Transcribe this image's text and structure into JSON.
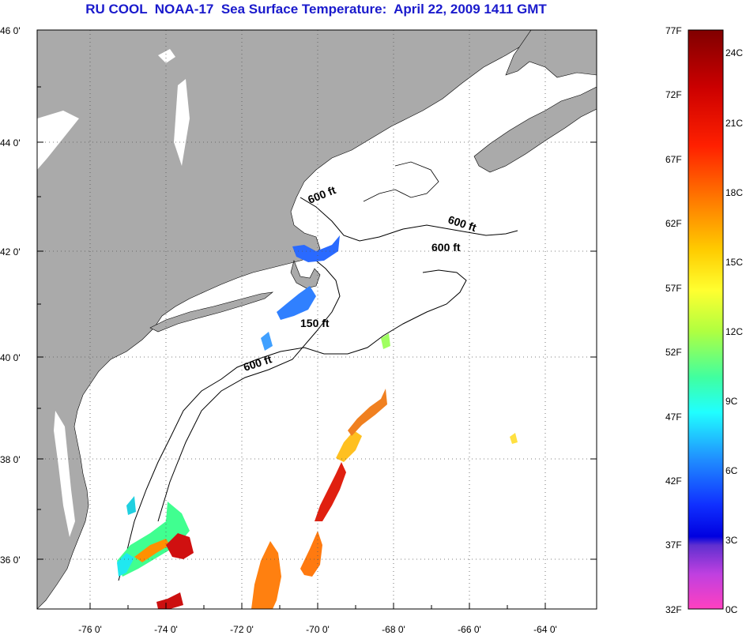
{
  "title": "RU COOL  NOAA-17  Sea Surface Temperature:  April 22, 2009 1411 GMT",
  "map": {
    "lat_ticks": [
      "46 0'",
      "44 0'",
      "42 0'",
      "40 0'",
      "38 0'",
      "36 0'"
    ],
    "lon_ticks": [
      "-76 0'",
      "-74 0'",
      "-72 0'",
      "-70 0'",
      "-68 0'",
      "-66 0'",
      "-64 0'"
    ],
    "contour_labels": [
      "600 ft",
      "600 ft",
      "600 ft",
      "150 ft",
      "600 ft"
    ],
    "colors": {
      "land": "#aaaaaa",
      "ocean": "#ffffff",
      "title": "#1a1acc"
    }
  },
  "colorbar": {
    "fahrenheit_labels": [
      "77F",
      "72F",
      "67F",
      "62F",
      "57F",
      "52F",
      "47F",
      "42F",
      "37F",
      "32F"
    ],
    "celsius_labels": [
      "24C",
      "21C",
      "18C",
      "15C",
      "12C",
      "9C",
      "6C",
      "3C",
      "0C"
    ]
  }
}
